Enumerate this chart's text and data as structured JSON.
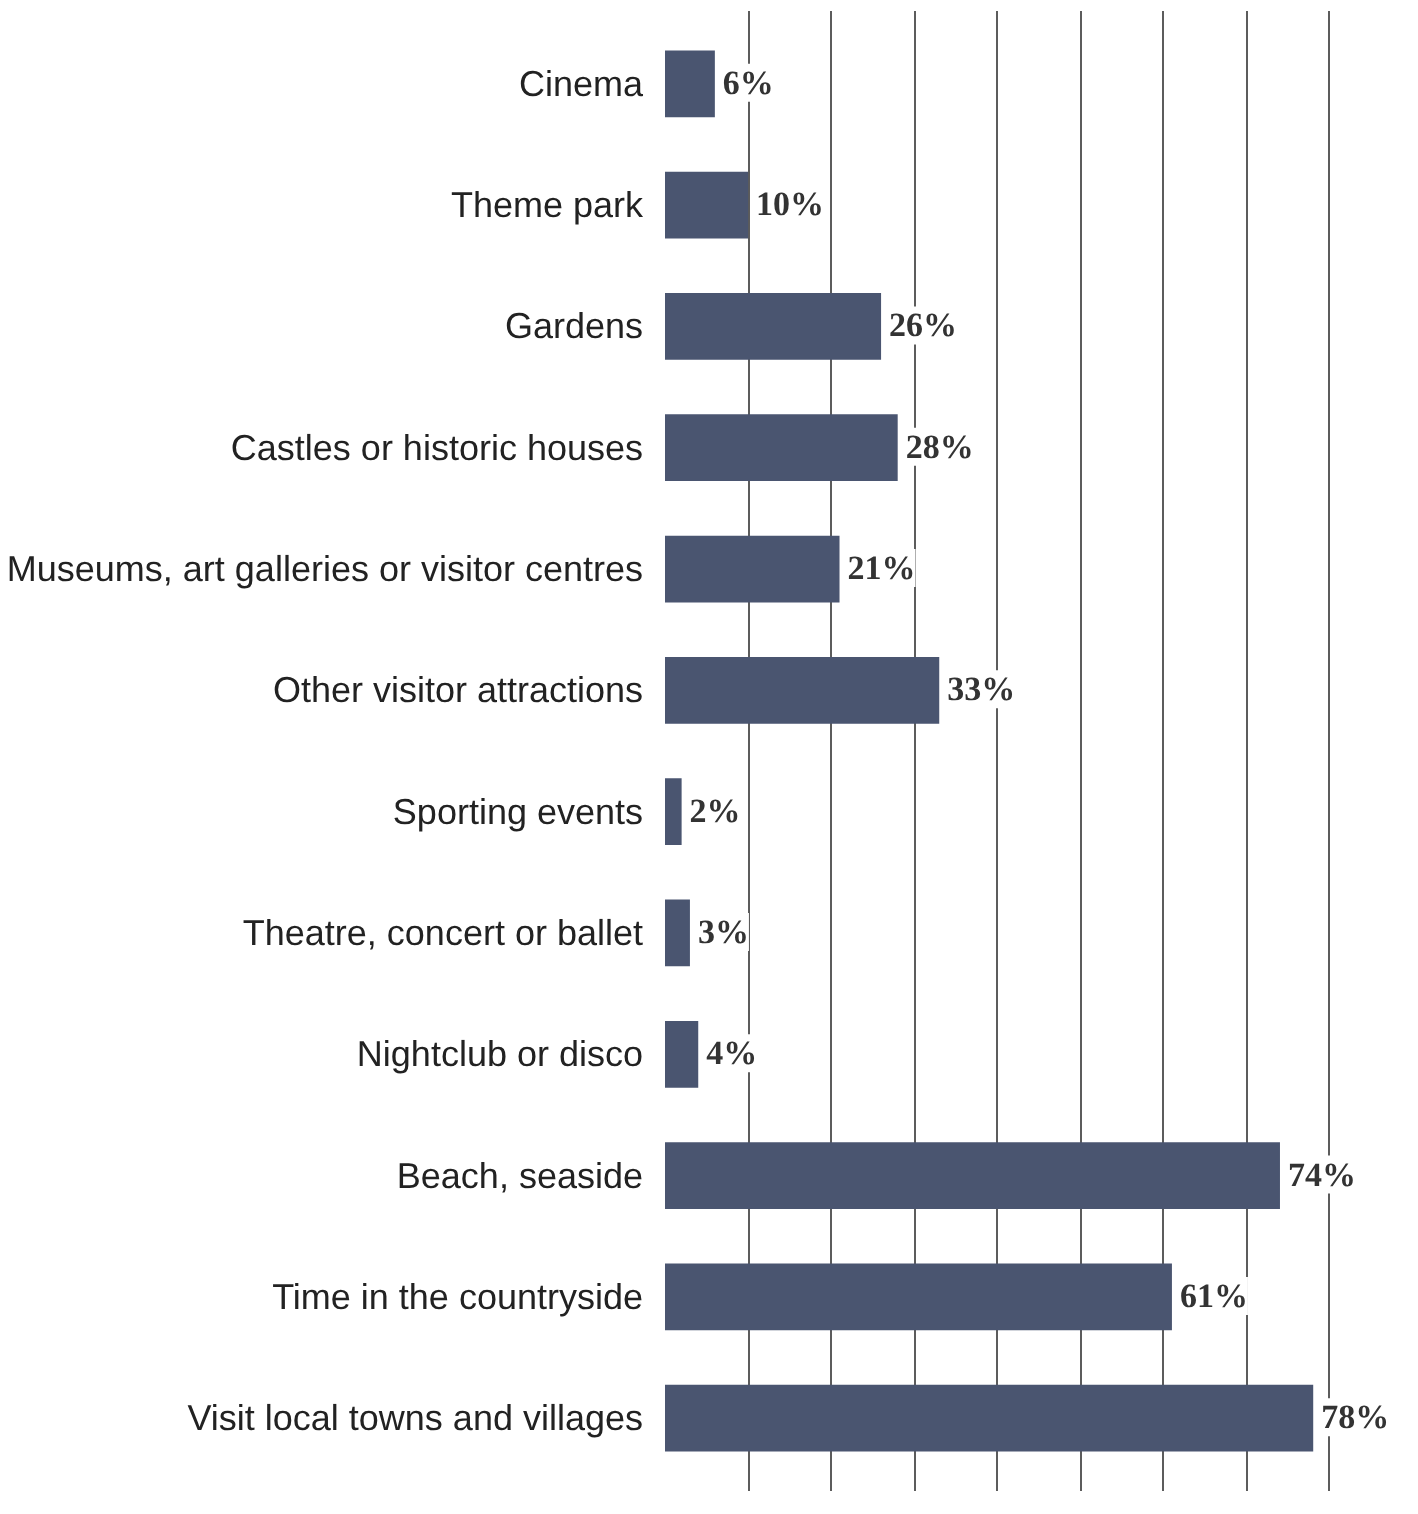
{
  "chart_data": {
    "type": "bar",
    "orientation": "horizontal",
    "categories": [
      "Cinema",
      "Theme park",
      "Gardens",
      "Castles or historic houses",
      "Museums, art galleries or visitor centres",
      "Other visitor attractions",
      "Sporting events",
      "Theatre, concert or ballet",
      "Nightclub or disco",
      "Beach, seaside",
      "Time in the countryside",
      "Visit local towns and villages"
    ],
    "values": [
      6,
      10,
      26,
      28,
      21,
      33,
      2,
      3,
      4,
      74,
      61,
      78
    ],
    "value_labels": [
      "6%",
      "10%",
      "26%",
      "28%",
      "21%",
      "33%",
      "2%",
      "3%",
      "4%",
      "74%",
      "61%",
      "78%"
    ],
    "color": "#4a5570",
    "grid": "x",
    "tick_labels": "y"
  }
}
